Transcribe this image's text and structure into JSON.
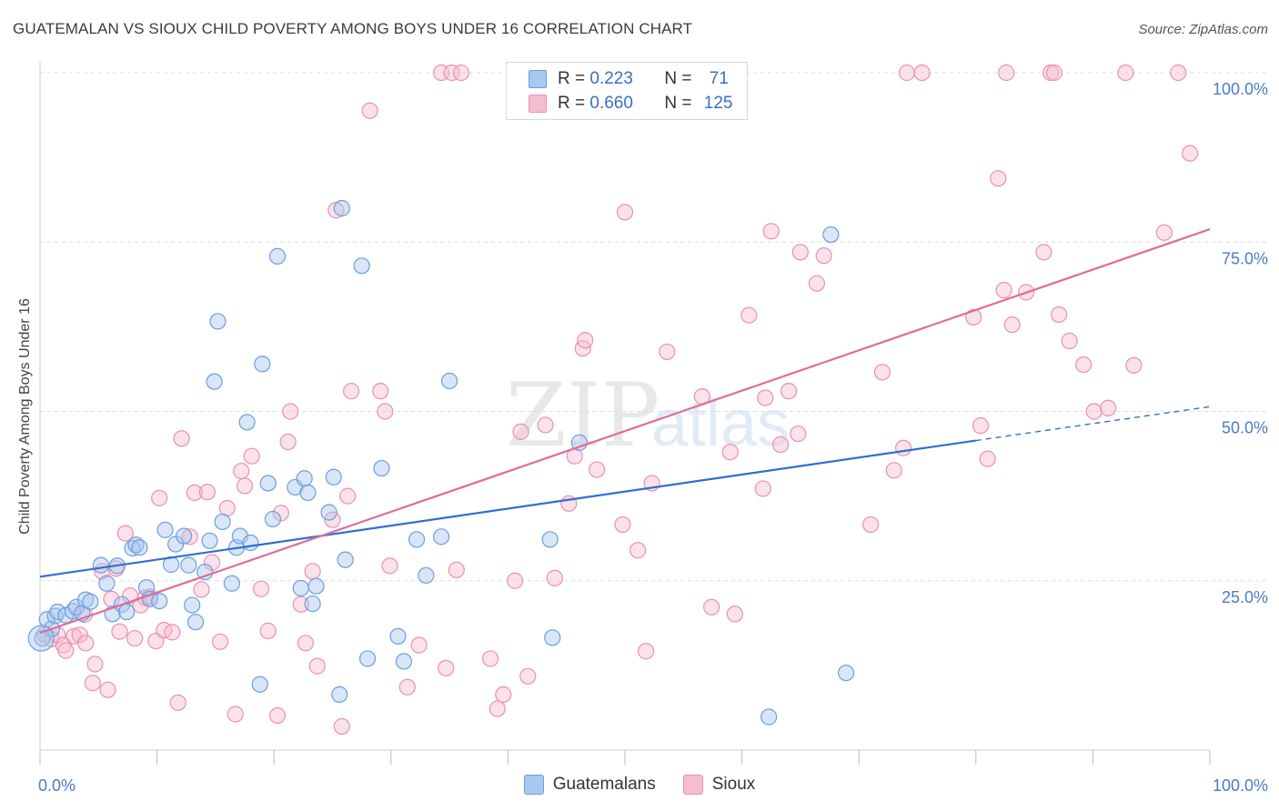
{
  "title": "GUATEMALAN VS SIOUX CHILD POVERTY AMONG BOYS UNDER 16 CORRELATION CHART",
  "source": "Source: ZipAtlas.com",
  "watermark": "ZIPatlas",
  "colors": {
    "guatemalans_fill": "#a9c8f0",
    "guatemalans_stroke": "#6a9fdc",
    "guatemalans_line": "#2f6fd0",
    "sioux_fill": "#f6bcd0",
    "sioux_stroke": "#eb90b2",
    "sioux_line": "#e06c96",
    "tick_label": "#4a7cc7",
    "grid": "#dddddd"
  },
  "stats": [
    {
      "r_label": "R =",
      "r_value": "0.223",
      "n_label": "N =",
      "n_value": "71"
    },
    {
      "r_label": "R =",
      "r_value": "0.660",
      "n_label": "N =",
      "n_value": "125"
    }
  ],
  "chart_data": {
    "type": "scatter",
    "title": "GUATEMALAN VS SIOUX CHILD POVERTY AMONG BOYS UNDER 16 CORRELATION CHART",
    "xlabel": "",
    "ylabel": "Child Poverty Among Boys Under 16",
    "xlim": [
      0,
      100
    ],
    "ylim": [
      0,
      100
    ],
    "x_tick_labels": [
      "0.0%",
      "100.0%"
    ],
    "y_ticks": [
      25,
      50,
      75,
      100
    ],
    "y_tick_labels": [
      "25.0%",
      "50.0%",
      "75.0%",
      "100.0%"
    ],
    "grid": true,
    "legend_position": "bottom-center",
    "series": [
      {
        "name": "Guatemalans",
        "trend": {
          "x0": 0,
          "y0": 25.6,
          "x1": 80,
          "y1": 45.7,
          "dash_to_x": 100,
          "dash_to_y": 50.7
        },
        "points": [
          [
            0.2,
            16.5
          ],
          [
            0.6,
            19.3
          ],
          [
            1.0,
            17.9
          ],
          [
            1.3,
            19.8
          ],
          [
            1.5,
            20.4
          ],
          [
            2.2,
            19.9
          ],
          [
            2.8,
            20.5
          ],
          [
            3.1,
            21.1
          ],
          [
            3.6,
            20.2
          ],
          [
            3.9,
            22.2
          ],
          [
            4.3,
            21.9
          ],
          [
            5.2,
            27.3
          ],
          [
            5.7,
            24.6
          ],
          [
            6.2,
            20.1
          ],
          [
            6.6,
            27.2
          ],
          [
            7.0,
            21.5
          ],
          [
            7.4,
            20.4
          ],
          [
            7.9,
            29.8
          ],
          [
            8.2,
            30.3
          ],
          [
            8.5,
            29.9
          ],
          [
            9.1,
            24.0
          ],
          [
            9.4,
            22.3
          ],
          [
            10.2,
            22.0
          ],
          [
            10.7,
            32.5
          ],
          [
            11.2,
            27.4
          ],
          [
            11.6,
            30.4
          ],
          [
            12.3,
            31.6
          ],
          [
            12.7,
            27.3
          ],
          [
            13.0,
            21.4
          ],
          [
            13.3,
            18.9
          ],
          [
            14.1,
            26.3
          ],
          [
            14.5,
            30.9
          ],
          [
            14.9,
            54.4
          ],
          [
            15.2,
            63.3
          ],
          [
            15.6,
            33.7
          ],
          [
            16.4,
            24.6
          ],
          [
            16.8,
            29.9
          ],
          [
            17.1,
            31.6
          ],
          [
            17.7,
            48.4
          ],
          [
            18.0,
            30.6
          ],
          [
            18.8,
            9.7
          ],
          [
            19.0,
            57.0
          ],
          [
            19.5,
            39.4
          ],
          [
            19.9,
            34.1
          ],
          [
            20.3,
            72.9
          ],
          [
            21.8,
            38.8
          ],
          [
            22.3,
            23.9
          ],
          [
            22.6,
            40.1
          ],
          [
            22.9,
            38.0
          ],
          [
            23.3,
            21.6
          ],
          [
            23.6,
            24.2
          ],
          [
            24.7,
            35.1
          ],
          [
            25.1,
            40.3
          ],
          [
            25.6,
            8.2
          ],
          [
            25.8,
            80.0
          ],
          [
            26.1,
            28.1
          ],
          [
            27.5,
            71.5
          ],
          [
            28.0,
            13.5
          ],
          [
            29.2,
            41.6
          ],
          [
            30.6,
            16.8
          ],
          [
            31.1,
            13.1
          ],
          [
            32.2,
            31.1
          ],
          [
            33.0,
            25.8
          ],
          [
            34.3,
            31.5
          ],
          [
            35.0,
            54.5
          ],
          [
            43.6,
            31.1
          ],
          [
            43.8,
            16.6
          ],
          [
            46.1,
            45.4
          ],
          [
            62.3,
            4.9
          ],
          [
            67.6,
            76.1
          ],
          [
            68.9,
            11.4
          ]
        ]
      },
      {
        "name": "Sioux",
        "trend": {
          "x0": 0,
          "y0": 17.3,
          "x1": 100,
          "y1": 76.9
        },
        "points": [
          [
            0.4,
            17.1
          ],
          [
            1.0,
            16.4
          ],
          [
            1.5,
            17.0
          ],
          [
            2.0,
            15.5
          ],
          [
            2.2,
            14.7
          ],
          [
            2.9,
            16.8
          ],
          [
            3.4,
            17.0
          ],
          [
            3.8,
            20.0
          ],
          [
            3.9,
            15.8
          ],
          [
            4.5,
            9.9
          ],
          [
            4.7,
            12.7
          ],
          [
            5.3,
            26.4
          ],
          [
            5.8,
            8.9
          ],
          [
            6.1,
            22.3
          ],
          [
            6.5,
            26.8
          ],
          [
            6.8,
            17.5
          ],
          [
            7.3,
            32.0
          ],
          [
            7.7,
            22.8
          ],
          [
            8.1,
            16.5
          ],
          [
            8.6,
            21.4
          ],
          [
            9.0,
            22.5
          ],
          [
            9.4,
            22.6
          ],
          [
            9.9,
            16.1
          ],
          [
            10.2,
            37.2
          ],
          [
            10.6,
            17.7
          ],
          [
            11.3,
            17.4
          ],
          [
            11.8,
            7.0
          ],
          [
            12.1,
            46.0
          ],
          [
            12.8,
            31.5
          ],
          [
            13.2,
            38.0
          ],
          [
            13.8,
            23.7
          ],
          [
            14.3,
            38.1
          ],
          [
            14.7,
            27.7
          ],
          [
            15.4,
            16.0
          ],
          [
            16.0,
            35.7
          ],
          [
            16.7,
            5.3
          ],
          [
            17.2,
            41.2
          ],
          [
            17.5,
            39.0
          ],
          [
            18.1,
            43.4
          ],
          [
            18.9,
            23.8
          ],
          [
            19.5,
            17.6
          ],
          [
            20.3,
            5.1
          ],
          [
            20.6,
            35.0
          ],
          [
            21.2,
            45.5
          ],
          [
            21.4,
            50.0
          ],
          [
            22.3,
            21.5
          ],
          [
            22.7,
            15.8
          ],
          [
            23.3,
            26.4
          ],
          [
            23.7,
            12.4
          ],
          [
            25.0,
            34.0
          ],
          [
            25.3,
            79.7
          ],
          [
            25.8,
            3.5
          ],
          [
            26.3,
            37.5
          ],
          [
            26.6,
            53.0
          ],
          [
            28.2,
            94.4
          ],
          [
            29.1,
            53.0
          ],
          [
            29.5,
            50.0
          ],
          [
            29.9,
            27.2
          ],
          [
            31.4,
            9.3
          ],
          [
            32.4,
            15.5
          ],
          [
            34.3,
            100.0
          ],
          [
            35.2,
            100.0
          ],
          [
            34.7,
            12.1
          ],
          [
            35.6,
            26.6
          ],
          [
            36.0,
            100.0
          ],
          [
            38.5,
            13.5
          ],
          [
            39.1,
            6.1
          ],
          [
            39.6,
            8.2
          ],
          [
            40.6,
            25.0
          ],
          [
            41.1,
            47.0
          ],
          [
            41.7,
            10.9
          ],
          [
            42.5,
            100.0
          ],
          [
            43.2,
            48.0
          ],
          [
            44.0,
            25.4
          ],
          [
            45.2,
            36.4
          ],
          [
            45.7,
            43.4
          ],
          [
            46.4,
            59.3
          ],
          [
            46.6,
            60.5
          ],
          [
            47.6,
            41.4
          ],
          [
            50.0,
            79.4
          ],
          [
            49.8,
            33.3
          ],
          [
            51.1,
            29.5
          ],
          [
            51.8,
            14.6
          ],
          [
            52.3,
            39.4
          ],
          [
            53.6,
            58.8
          ],
          [
            56.6,
            52.2
          ],
          [
            57.4,
            21.1
          ],
          [
            59.0,
            44.0
          ],
          [
            59.4,
            20.1
          ],
          [
            60.6,
            64.2
          ],
          [
            61.8,
            38.6
          ],
          [
            62.0,
            52.0
          ],
          [
            62.5,
            76.6
          ],
          [
            63.3,
            45.1
          ],
          [
            64.0,
            53.0
          ],
          [
            64.8,
            46.7
          ],
          [
            65.0,
            73.5
          ],
          [
            66.4,
            68.9
          ],
          [
            67.0,
            73.0
          ],
          [
            71.0,
            33.3
          ],
          [
            72.0,
            55.8
          ],
          [
            73.0,
            41.3
          ],
          [
            73.8,
            44.6
          ],
          [
            74.1,
            100.0
          ],
          [
            75.4,
            100.0
          ],
          [
            79.8,
            63.9
          ],
          [
            80.4,
            47.9
          ],
          [
            81.0,
            43.0
          ],
          [
            81.9,
            84.4
          ],
          [
            82.4,
            67.9
          ],
          [
            82.6,
            100.0
          ],
          [
            83.1,
            62.8
          ],
          [
            84.3,
            67.6
          ],
          [
            85.8,
            73.5
          ],
          [
            86.4,
            100.0
          ],
          [
            86.7,
            100.0
          ],
          [
            87.1,
            64.3
          ],
          [
            88.0,
            60.4
          ],
          [
            89.2,
            56.9
          ],
          [
            90.1,
            50.0
          ],
          [
            91.3,
            50.5
          ],
          [
            92.8,
            100.0
          ],
          [
            93.5,
            56.8
          ],
          [
            96.1,
            76.4
          ],
          [
            97.3,
            100.0
          ],
          [
            98.3,
            88.1
          ]
        ]
      }
    ]
  },
  "legend": [
    {
      "label": "Guatemalans"
    },
    {
      "label": "Sioux"
    }
  ]
}
